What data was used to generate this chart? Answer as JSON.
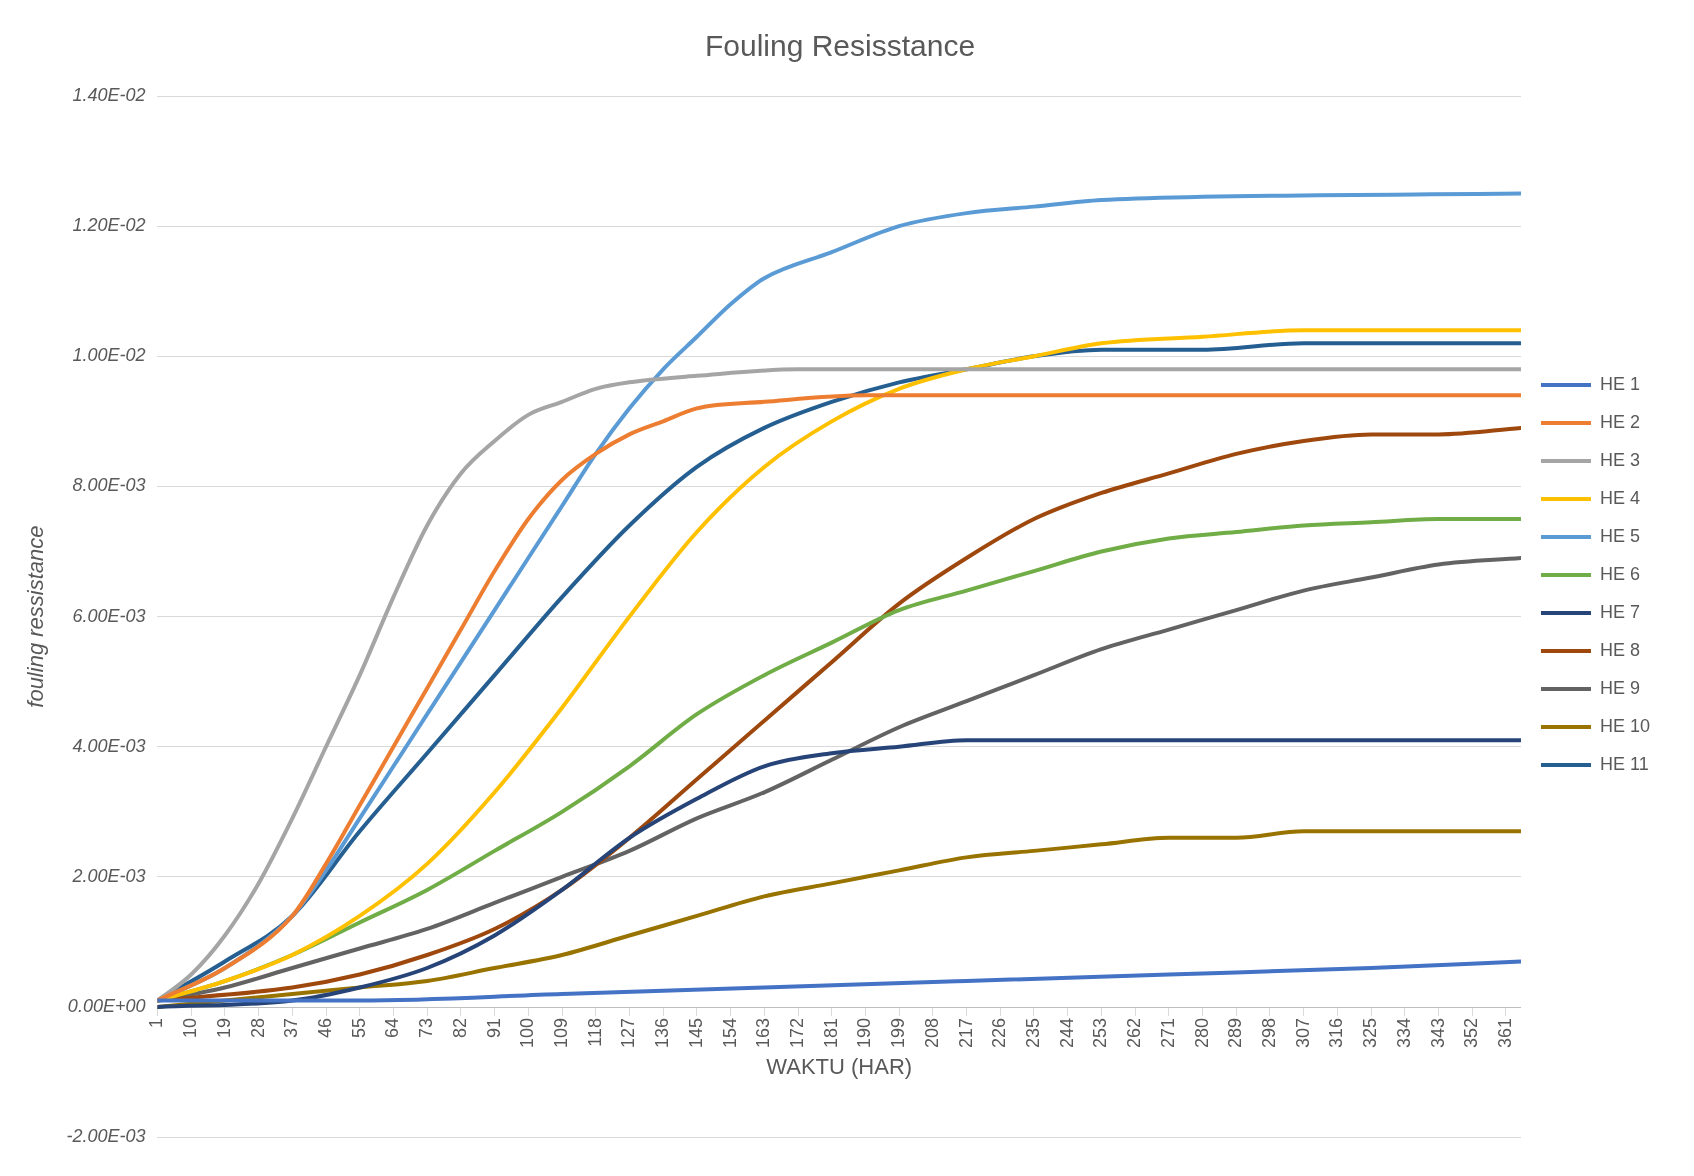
{
  "chart_data": {
    "type": "line",
    "title": "Fouling Resisstance",
    "xlabel": "WAKTU (HAR)",
    "ylabel": "fouling ressistance",
    "xlim": [
      1,
      365
    ],
    "xticks": [
      1,
      10,
      19,
      28,
      37,
      46,
      55,
      64,
      73,
      82,
      91,
      100,
      109,
      118,
      127,
      136,
      145,
      154,
      163,
      172,
      181,
      190,
      199,
      208,
      217,
      226,
      235,
      244,
      253,
      262,
      271,
      280,
      289,
      298,
      307,
      316,
      325,
      334,
      343,
      352,
      361
    ],
    "ylim": [
      -0.002,
      0.014
    ],
    "yticks": [
      {
        "value": -0.002,
        "label": "-2.00E-03"
      },
      {
        "value": 0,
        "label": "0.00E+00"
      },
      {
        "value": 0.002,
        "label": "2.00E-03"
      },
      {
        "value": 0.004,
        "label": "4.00E-03"
      },
      {
        "value": 0.006,
        "label": "6.00E-03"
      },
      {
        "value": 0.008,
        "label": "8.00E-03"
      },
      {
        "value": 0.01,
        "label": "1.00E-02"
      },
      {
        "value": 0.012,
        "label": "1.20E-02"
      },
      {
        "value": 0.014,
        "label": "1.40E-02"
      }
    ],
    "grid": "y",
    "legend": "right",
    "marker": "none",
    "line_style": "solid",
    "series": [
      {
        "name": "HE 1",
        "color": "#4472c4",
        "x": [
          1,
          55,
          109,
          163,
          217,
          271,
          325,
          365
        ],
        "values": [
          0.0001,
          0.0001,
          0.0002,
          0.0003,
          0.0004,
          0.0005,
          0.0006,
          0.0007
        ]
      },
      {
        "name": "HE 2",
        "color": "#ed7d31",
        "x": [
          1,
          19,
          37,
          46,
          55,
          64,
          73,
          82,
          91,
          100,
          109,
          118,
          127,
          136,
          145,
          163,
          190,
          365
        ],
        "values": [
          0.0001,
          0.0006,
          0.0014,
          0.0022,
          0.0031,
          0.004,
          0.0049,
          0.0058,
          0.0067,
          0.0075,
          0.0081,
          0.0085,
          0.0088,
          0.009,
          0.0092,
          0.0093,
          0.0094,
          0.0094
        ]
      },
      {
        "name": "HE 3",
        "color": "#a5a5a5",
        "x": [
          1,
          10,
          19,
          28,
          37,
          46,
          55,
          64,
          73,
          82,
          91,
          100,
          109,
          118,
          127,
          145,
          172,
          365
        ],
        "values": [
          0.0001,
          0.0005,
          0.0011,
          0.0019,
          0.0029,
          0.004,
          0.0051,
          0.0063,
          0.0074,
          0.0082,
          0.0087,
          0.0091,
          0.0093,
          0.0095,
          0.0096,
          0.0097,
          0.0098,
          0.0098
        ]
      },
      {
        "name": "HE 4",
        "color": "#ffc000",
        "x": [
          1,
          19,
          37,
          55,
          73,
          91,
          109,
          127,
          145,
          163,
          181,
          199,
          217,
          235,
          253,
          280,
          307,
          365
        ],
        "values": [
          0.0001,
          0.0004,
          0.0008,
          0.0014,
          0.0022,
          0.0033,
          0.0046,
          0.006,
          0.0073,
          0.0083,
          0.009,
          0.0095,
          0.0098,
          0.01,
          0.0102,
          0.0103,
          0.0104,
          0.0104
        ]
      },
      {
        "name": "HE 5",
        "color": "#5b9bd5",
        "x": [
          1,
          19,
          37,
          46,
          55,
          64,
          73,
          82,
          91,
          100,
          109,
          118,
          127,
          136,
          145,
          154,
          163,
          181,
          199,
          217,
          235,
          253,
          280,
          365
        ],
        "values": [
          0.0001,
          0.0006,
          0.0014,
          0.0021,
          0.0029,
          0.0037,
          0.0045,
          0.0053,
          0.0061,
          0.0069,
          0.0077,
          0.0085,
          0.0092,
          0.0098,
          0.0103,
          0.0108,
          0.0112,
          0.0116,
          0.012,
          0.0122,
          0.0123,
          0.0124,
          0.01245,
          0.0125
        ]
      },
      {
        "name": "HE 6",
        "color": "#70ad47",
        "x": [
          1,
          19,
          37,
          55,
          73,
          91,
          109,
          127,
          145,
          163,
          181,
          199,
          217,
          235,
          253,
          271,
          289,
          307,
          325,
          343,
          365
        ],
        "values": [
          0.0001,
          0.0004,
          0.0008,
          0.0013,
          0.0018,
          0.0024,
          0.003,
          0.0037,
          0.0045,
          0.0051,
          0.0056,
          0.0061,
          0.0064,
          0.0067,
          0.007,
          0.0072,
          0.0073,
          0.0074,
          0.00745,
          0.0075,
          0.0075
        ]
      },
      {
        "name": "HE 7",
        "color": "#264478",
        "x": [
          1,
          37,
          55,
          73,
          91,
          109,
          127,
          145,
          163,
          181,
          199,
          217,
          253,
          365
        ],
        "values": [
          0,
          0.0001,
          0.0003,
          0.0006,
          0.0011,
          0.0018,
          0.0026,
          0.0032,
          0.0037,
          0.0039,
          0.004,
          0.0041,
          0.0041,
          0.0041
        ]
      },
      {
        "name": "HE 8",
        "color": "#9e480e",
        "x": [
          1,
          37,
          55,
          73,
          91,
          109,
          127,
          145,
          163,
          181,
          199,
          217,
          235,
          253,
          271,
          289,
          307,
          325,
          343,
          365
        ],
        "values": [
          0.0001,
          0.0003,
          0.0005,
          0.0008,
          0.0012,
          0.0018,
          0.0026,
          0.0035,
          0.0044,
          0.0053,
          0.0062,
          0.0069,
          0.0075,
          0.0079,
          0.0082,
          0.0085,
          0.0087,
          0.0088,
          0.0088,
          0.0089
        ]
      },
      {
        "name": "HE 9",
        "color": "#636363",
        "x": [
          1,
          19,
          37,
          55,
          73,
          91,
          109,
          127,
          145,
          163,
          181,
          199,
          217,
          235,
          253,
          271,
          289,
          307,
          325,
          343,
          365
        ],
        "values": [
          0.0001,
          0.0003,
          0.0006,
          0.0009,
          0.0012,
          0.0016,
          0.002,
          0.0024,
          0.0029,
          0.0033,
          0.0038,
          0.0043,
          0.0047,
          0.0051,
          0.0055,
          0.0058,
          0.0061,
          0.0064,
          0.0066,
          0.0068,
          0.0069
        ]
      },
      {
        "name": "HE 10",
        "color": "#997300",
        "x": [
          1,
          19,
          37,
          55,
          73,
          91,
          109,
          127,
          145,
          163,
          181,
          199,
          217,
          235,
          253,
          271,
          289,
          307,
          365
        ],
        "values": [
          0,
          0.0001,
          0.0002,
          0.0003,
          0.0004,
          0.0006,
          0.0008,
          0.0011,
          0.0014,
          0.0017,
          0.0019,
          0.0021,
          0.0023,
          0.0024,
          0.0025,
          0.0026,
          0.0026,
          0.0027,
          0.0027
        ]
      },
      {
        "name": "HE 11",
        "color": "#255e91",
        "x": [
          1,
          19,
          37,
          55,
          73,
          91,
          109,
          127,
          145,
          163,
          181,
          199,
          217,
          235,
          253,
          280,
          307,
          365
        ],
        "values": [
          0.0001,
          0.0007,
          0.0014,
          0.0027,
          0.0039,
          0.0051,
          0.0063,
          0.0074,
          0.0083,
          0.0089,
          0.0093,
          0.0096,
          0.0098,
          0.01,
          0.0101,
          0.0101,
          0.0102,
          0.0102
        ]
      }
    ]
  }
}
